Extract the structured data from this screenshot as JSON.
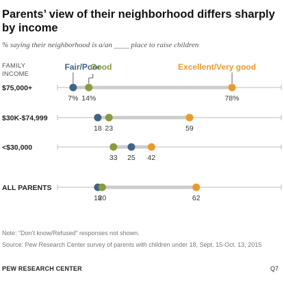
{
  "title": "Parents’ view of their neighborhood differs sharply by income",
  "subtitle": "% saying their neighborhood is a/an ____ place to raise children",
  "group_label": [
    "FAMILY",
    "INCOME"
  ],
  "note": "Note: “Don’t know/Refused” responses not shown.",
  "source": "Source: Pew Research Center survey of parents with children under 18, Sept. 15-Oct. 13, 2015",
  "org": "PEW RESEARCH CENTER",
  "question": "Q7",
  "colors": {
    "fair_poor": "#3f6485",
    "good": "#8a9a3c",
    "excellent": "#ea9a2a",
    "track": "#cccccc"
  },
  "chart_data": {
    "type": "dot",
    "xlim": [
      0,
      100
    ],
    "categories": [
      "$75,000+",
      "$30K-$74,999",
      "<$30,000",
      "ALL PARENTS"
    ],
    "series": [
      {
        "name": "Fair/Poor",
        "values": [
          7,
          18,
          33,
          18
        ]
      },
      {
        "name": "Good",
        "values": [
          14,
          23,
          25,
          20
        ]
      },
      {
        "name": "Excellent/Very good",
        "values": [
          78,
          59,
          42,
          62
        ]
      }
    ],
    "value_labels": [
      [
        "7%",
        "14%",
        "78%"
      ],
      [
        "18",
        "23",
        "59"
      ],
      [
        "25",
        "33",
        "42"
      ],
      [
        "18",
        "20",
        "62"
      ]
    ]
  }
}
